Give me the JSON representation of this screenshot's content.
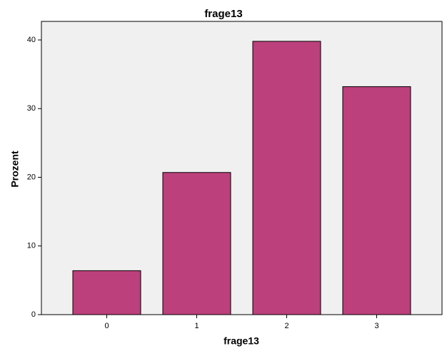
{
  "chart_data": {
    "type": "bar",
    "title": "frage13",
    "x_label": "frage13",
    "y_label": "Prozent",
    "categories": [
      "0",
      "1",
      "2",
      "3"
    ],
    "values": [
      6.4,
      20.7,
      39.8,
      33.2
    ],
    "color": "#bc407c",
    "ylim": [
      0,
      42.7
    ],
    "yticks": [
      0,
      10,
      20,
      30,
      40
    ],
    "grid": false
  }
}
